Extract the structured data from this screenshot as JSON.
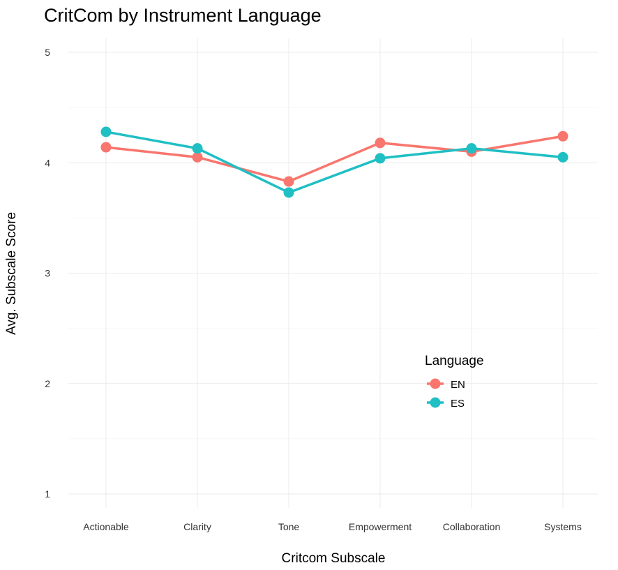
{
  "chart_data": {
    "type": "line",
    "title": "CritCom by Instrument Language",
    "xlabel": "Critcom Subscale",
    "ylabel": "Avg. Subscale Score",
    "categories": [
      "Actionable",
      "Clarity",
      "Tone",
      "Empowerment",
      "Collaboration",
      "Systems"
    ],
    "ylim": [
      1,
      5
    ],
    "yticks": [
      1,
      2,
      3,
      4,
      5
    ],
    "yticks_labels": [
      "1",
      "2",
      "3",
      "4",
      "5"
    ],
    "grid": true,
    "legend": {
      "title": "Language",
      "position": "right-inside"
    },
    "series": [
      {
        "name": "EN",
        "color": "#f8766d",
        "values": [
          4.14,
          4.05,
          3.83,
          4.18,
          4.1,
          4.24
        ]
      },
      {
        "name": "ES",
        "color": "#1fbfc4",
        "values": [
          4.28,
          4.13,
          3.73,
          4.04,
          4.13,
          4.05
        ]
      }
    ]
  }
}
